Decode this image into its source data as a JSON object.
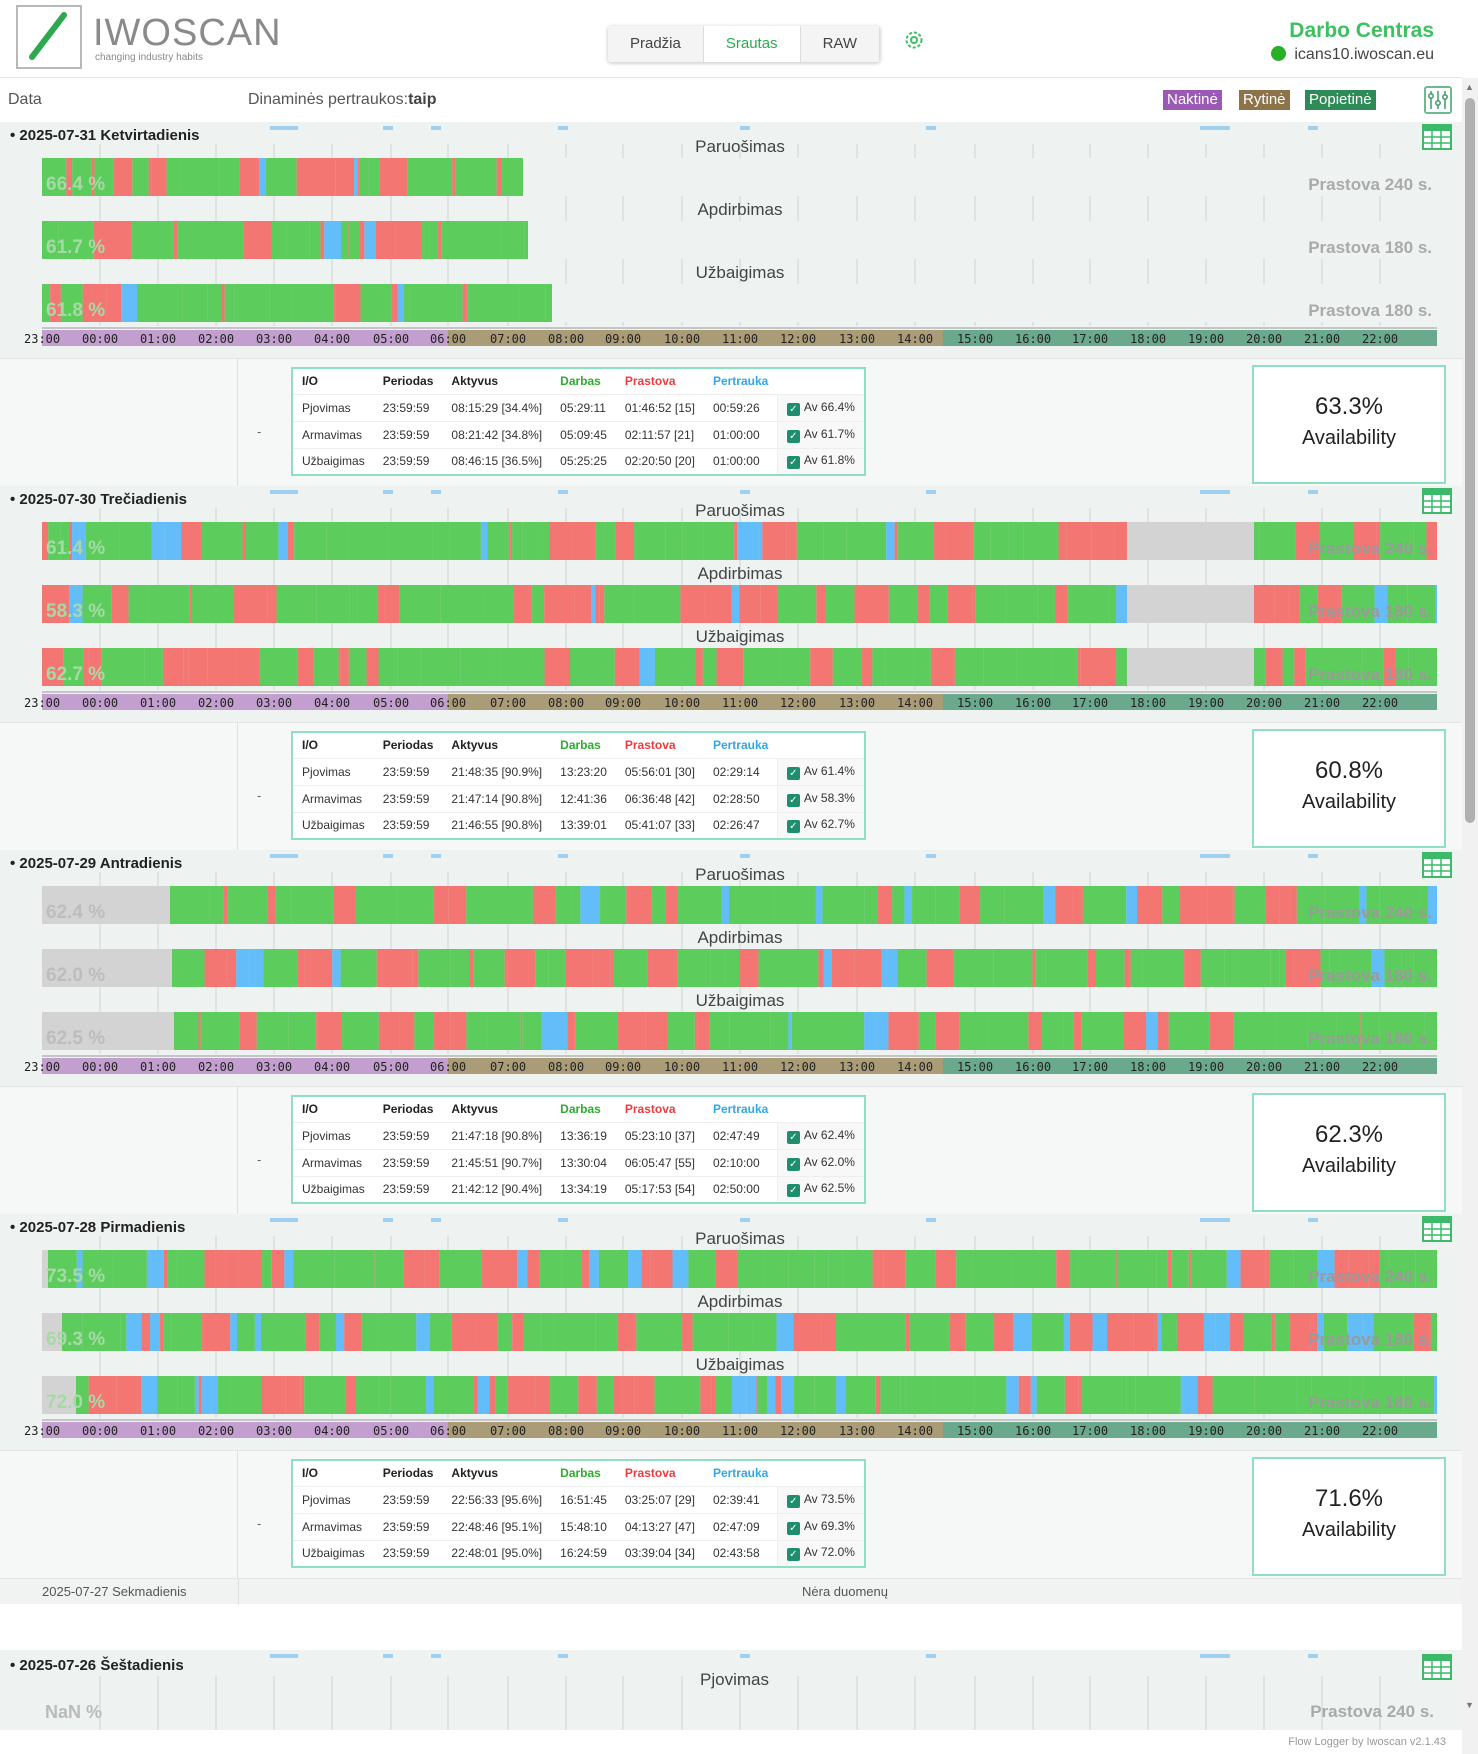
{
  "header": {
    "logo_name": "IWOSCAN",
    "logo_tagline": "changing industry habits",
    "nav_tabs": [
      "Pradžia",
      "Srautas",
      "RAW"
    ],
    "active_tab": "Srautas",
    "workcenter_title": "Darbo Centras",
    "host": "icans10.iwoscan.eu"
  },
  "controls": {
    "data_label": "Data",
    "dynamic_breaks_label": "Dinaminės pertraukos:",
    "dynamic_breaks_value": "taip",
    "shifts": [
      {
        "label": "Naktinė",
        "color": "#9b59b6"
      },
      {
        "label": "Rytinė",
        "color": "#8c7349"
      },
      {
        "label": "Popietinė",
        "color": "#2e8b57"
      }
    ]
  },
  "colors": {
    "work": "#5ccd5c",
    "downtime": "#f47672",
    "pause": "#63bdf8",
    "nodata": "#d3d3d3",
    "night": "#c39fcf",
    "morning": "#ab9c78",
    "afternoon": "#6aa98b"
  },
  "axis": {
    "hours": [
      "23:00",
      "00:00",
      "01:00",
      "02:00",
      "03:00",
      "04:00",
      "05:00",
      "06:00",
      "07:00",
      "08:00",
      "09:00",
      "10:00",
      "11:00",
      "12:00",
      "13:00",
      "14:00",
      "15:00",
      "16:00",
      "17:00",
      "18:00",
      "19:00",
      "20:00",
      "21:00",
      "22:00"
    ]
  },
  "table_headers": [
    "I/O",
    "Periodas",
    "Aktyvus",
    "Darbas",
    "Prastova",
    "Pertrauka"
  ],
  "availability_label": "Availability",
  "days": [
    {
      "title": "• 2025-07-31 Ketvirtadienis",
      "end_fraction": 0.36,
      "lines": [
        {
          "name": "Paruošimas",
          "pct": "66.4 %",
          "threshold": "Prastova 240 s."
        },
        {
          "name": "Apdirbimas",
          "pct": "61.7 %",
          "threshold": "Prastova 180 s."
        },
        {
          "name": "Užbaigimas",
          "pct": "61.8 %",
          "threshold": "Prastova 180 s."
        }
      ],
      "rows": [
        {
          "io": "Pjovimas",
          "period": "23:59:59",
          "active": "08:15:29 [34.4%]",
          "work": "05:29:11",
          "down": "01:46:52 [15]",
          "pause": "00:59:26",
          "av": "Av 66.4%"
        },
        {
          "io": "Armavimas",
          "period": "23:59:59",
          "active": "08:21:42 [34.8%]",
          "work": "05:09:45",
          "down": "02:11:57 [21]",
          "pause": "01:00:00",
          "av": "Av 61.7%"
        },
        {
          "io": "Užbaigimas",
          "period": "23:59:59",
          "active": "08:46:15 [36.5%]",
          "work": "05:25:25",
          "down": "02:20:50 [20]",
          "pause": "01:00:00",
          "av": "Av 61.8%"
        }
      ],
      "availability": "63.3%",
      "summary_dash": "-"
    },
    {
      "title": "• 2025-07-30 Trečiadienis",
      "end_fraction": 1.0,
      "lines": [
        {
          "name": "Paruošimas",
          "pct": "61.4 %",
          "threshold": "Prastova 240 s."
        },
        {
          "name": "Apdirbimas",
          "pct": "58.3 %",
          "threshold": "Prastova 180 s."
        },
        {
          "name": "Užbaigimas",
          "pct": "62.7 %",
          "threshold": "Prastova 180 s."
        }
      ],
      "rows": [
        {
          "io": "Pjovimas",
          "period": "23:59:59",
          "active": "21:48:35 [90.9%]",
          "work": "13:23:20",
          "down": "05:56:01 [30]",
          "pause": "02:29:14",
          "av": "Av 61.4%"
        },
        {
          "io": "Armavimas",
          "period": "23:59:59",
          "active": "21:47:14 [90.8%]",
          "work": "12:41:36",
          "down": "06:36:48 [42]",
          "pause": "02:28:50",
          "av": "Av 58.3%"
        },
        {
          "io": "Užbaigimas",
          "period": "23:59:59",
          "active": "21:46:55 [90.8%]",
          "work": "13:39:01",
          "down": "05:41:07 [33]",
          "pause": "02:26:47",
          "av": "Av 62.7%"
        }
      ],
      "availability": "60.8%",
      "summary_dash": "-"
    },
    {
      "title": "• 2025-07-29 Antradienis",
      "end_fraction": 1.0,
      "lines": [
        {
          "name": "Paruošimas",
          "pct": "62.4 %",
          "threshold": "Prastova 240 s."
        },
        {
          "name": "Apdirbimas",
          "pct": "62.0 %",
          "threshold": "Prastova 180 s."
        },
        {
          "name": "Užbaigimas",
          "pct": "62.5 %",
          "threshold": "Prastova 180 s."
        }
      ],
      "rows": [
        {
          "io": "Pjovimas",
          "period": "23:59:59",
          "active": "21:47:18 [90.8%]",
          "work": "13:36:19",
          "down": "05:23:10 [37]",
          "pause": "02:47:49",
          "av": "Av 62.4%"
        },
        {
          "io": "Armavimas",
          "period": "23:59:59",
          "active": "21:45:51 [90.7%]",
          "work": "13:30:04",
          "down": "06:05:47 [55]",
          "pause": "02:10:00",
          "av": "Av 62.0%"
        },
        {
          "io": "Užbaigimas",
          "period": "23:59:59",
          "active": "21:42:12 [90.4%]",
          "work": "13:34:19",
          "down": "05:17:53 [54]",
          "pause": "02:50:00",
          "av": "Av 62.5%"
        }
      ],
      "availability": "62.3%",
      "summary_dash": "-"
    },
    {
      "title": "• 2025-07-28 Pirmadienis",
      "end_fraction": 1.0,
      "lines": [
        {
          "name": "Paruošimas",
          "pct": "73.5 %",
          "threshold": "Prastova 240 s."
        },
        {
          "name": "Apdirbimas",
          "pct": "69.3 %",
          "threshold": "Prastova 180 s."
        },
        {
          "name": "Užbaigimas",
          "pct": "72.0 %",
          "threshold": "Prastova 180 s."
        }
      ],
      "rows": [
        {
          "io": "Pjovimas",
          "period": "23:59:59",
          "active": "22:56:33 [95.6%]",
          "work": "16:51:45",
          "down": "03:25:07 [29]",
          "pause": "02:39:41",
          "av": "Av 73.5%"
        },
        {
          "io": "Armavimas",
          "period": "23:59:59",
          "active": "22:48:46 [95.1%]",
          "work": "15:48:10",
          "down": "04:13:27 [47]",
          "pause": "02:47:09",
          "av": "Av 69.3%"
        },
        {
          "io": "Užbaigimas",
          "period": "23:59:59",
          "active": "22:48:01 [95.0%]",
          "work": "16:24:59",
          "down": "03:39:04 [34]",
          "pause": "02:43:58",
          "av": "Av 72.0%"
        }
      ],
      "availability": "71.6%",
      "summary_dash": "-"
    }
  ],
  "no_data_day": {
    "date": "2025-07-27 Sekmadienis",
    "message": "Nėra duomenų"
  },
  "last_day": {
    "title": "• 2025-07-26 Šeštadienis",
    "line": "Pjovimas",
    "pct": "NaN %",
    "threshold": "Prastova 240 s."
  },
  "footer": "Flow Logger by Iwoscan v2.1.43"
}
